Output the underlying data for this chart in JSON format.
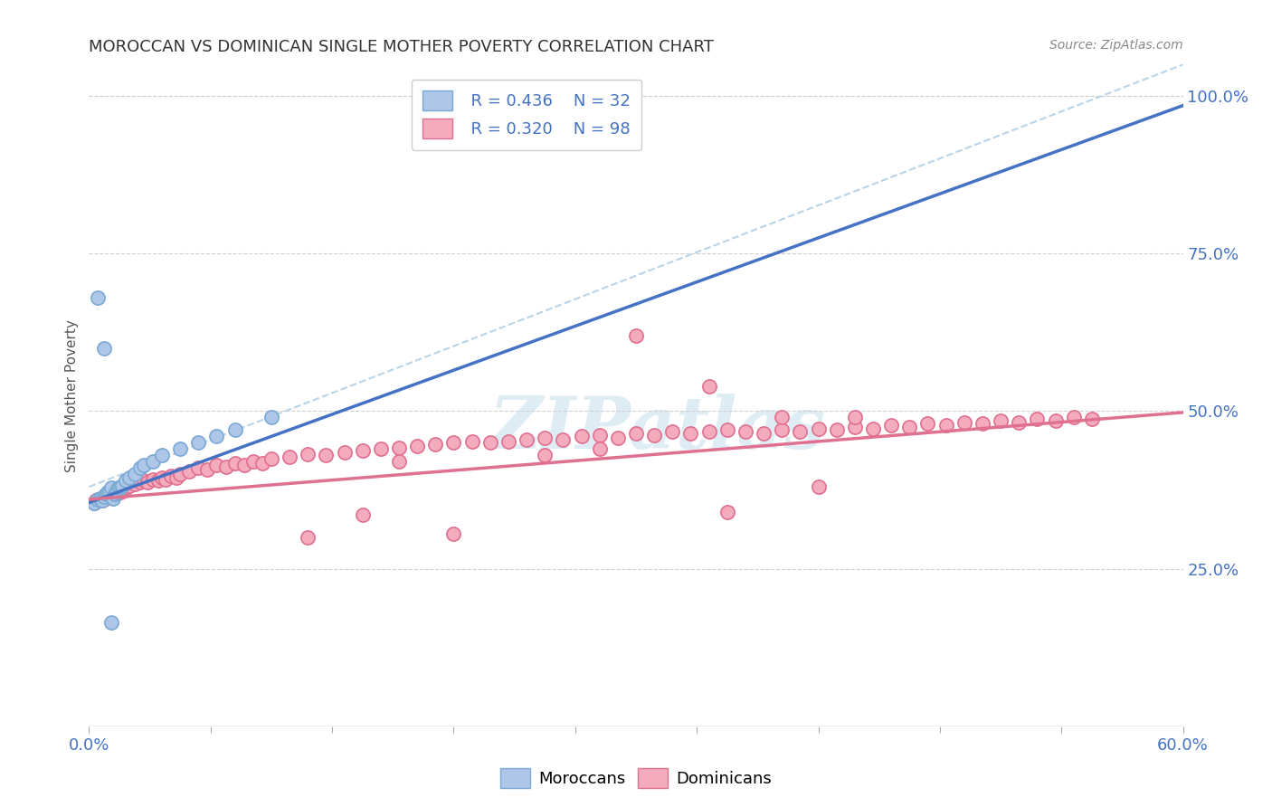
{
  "title": "MOROCCAN VS DOMINICAN SINGLE MOTHER POVERTY CORRELATION CHART",
  "source": "Source: ZipAtlas.com",
  "ylabel": "Single Mother Poverty",
  "right_yticks": [
    "25.0%",
    "50.0%",
    "75.0%",
    "100.0%"
  ],
  "right_ytick_vals": [
    0.25,
    0.5,
    0.75,
    1.0
  ],
  "xlim": [
    0.0,
    0.6
  ],
  "ylim": [
    0.0,
    1.05
  ],
  "moroccan_color": "#aec6e8",
  "dominican_color": "#f4abbe",
  "moroccan_edge": "#7aaad4",
  "dominican_edge": "#e07090",
  "trendline_moroccan_color": "#4472c4",
  "trendline_dominican_color": "#e07090",
  "diagonal_color": "#b8d4e8",
  "watermark": "ZIPatlas",
  "background_color": "#ffffff",
  "grid_color": "#d0d0d0",
  "moroccan_x": [
    0.003,
    0.005,
    0.006,
    0.007,
    0.008,
    0.009,
    0.01,
    0.01,
    0.011,
    0.012,
    0.013,
    0.014,
    0.015,
    0.015,
    0.016,
    0.017,
    0.018,
    0.02,
    0.022,
    0.025,
    0.028,
    0.03,
    0.035,
    0.04,
    0.05,
    0.06,
    0.07,
    0.08,
    0.1,
    0.005,
    0.008,
    0.012
  ],
  "moroccan_y": [
    0.355,
    0.36,
    0.362,
    0.358,
    0.365,
    0.368,
    0.37,
    0.372,
    0.375,
    0.378,
    0.362,
    0.368,
    0.372,
    0.375,
    0.378,
    0.38,
    0.382,
    0.39,
    0.395,
    0.4,
    0.41,
    0.415,
    0.42,
    0.43,
    0.44,
    0.45,
    0.46,
    0.47,
    0.49,
    0.68,
    0.6,
    0.165
  ],
  "dominican_x": [
    0.003,
    0.004,
    0.005,
    0.006,
    0.007,
    0.008,
    0.009,
    0.01,
    0.01,
    0.011,
    0.012,
    0.013,
    0.014,
    0.015,
    0.016,
    0.017,
    0.018,
    0.019,
    0.02,
    0.022,
    0.025,
    0.028,
    0.03,
    0.032,
    0.035,
    0.038,
    0.04,
    0.042,
    0.045,
    0.048,
    0.05,
    0.055,
    0.06,
    0.065,
    0.07,
    0.075,
    0.08,
    0.085,
    0.09,
    0.095,
    0.1,
    0.11,
    0.12,
    0.13,
    0.14,
    0.15,
    0.16,
    0.17,
    0.18,
    0.19,
    0.2,
    0.21,
    0.22,
    0.23,
    0.24,
    0.25,
    0.26,
    0.27,
    0.28,
    0.29,
    0.3,
    0.31,
    0.32,
    0.33,
    0.34,
    0.35,
    0.36,
    0.37,
    0.38,
    0.39,
    0.4,
    0.41,
    0.42,
    0.43,
    0.44,
    0.45,
    0.46,
    0.47,
    0.48,
    0.49,
    0.5,
    0.51,
    0.52,
    0.53,
    0.54,
    0.55,
    0.34,
    0.28,
    0.38,
    0.42,
    0.3,
    0.25,
    0.15,
    0.2,
    0.12,
    0.17,
    0.35,
    0.4
  ],
  "dominican_y": [
    0.355,
    0.358,
    0.36,
    0.362,
    0.358,
    0.365,
    0.362,
    0.368,
    0.365,
    0.37,
    0.365,
    0.368,
    0.372,
    0.37,
    0.375,
    0.372,
    0.378,
    0.375,
    0.38,
    0.382,
    0.385,
    0.388,
    0.39,
    0.388,
    0.392,
    0.39,
    0.395,
    0.392,
    0.398,
    0.395,
    0.4,
    0.405,
    0.41,
    0.408,
    0.415,
    0.412,
    0.418,
    0.415,
    0.42,
    0.418,
    0.425,
    0.428,
    0.432,
    0.43,
    0.435,
    0.438,
    0.44,
    0.442,
    0.445,
    0.448,
    0.45,
    0.452,
    0.45,
    0.452,
    0.455,
    0.458,
    0.455,
    0.46,
    0.462,
    0.458,
    0.465,
    0.462,
    0.468,
    0.465,
    0.468,
    0.47,
    0.468,
    0.465,
    0.47,
    0.468,
    0.472,
    0.47,
    0.475,
    0.472,
    0.478,
    0.475,
    0.48,
    0.478,
    0.482,
    0.48,
    0.485,
    0.482,
    0.488,
    0.485,
    0.49,
    0.488,
    0.54,
    0.44,
    0.49,
    0.49,
    0.62,
    0.43,
    0.335,
    0.305,
    0.3,
    0.42,
    0.34,
    0.38
  ]
}
